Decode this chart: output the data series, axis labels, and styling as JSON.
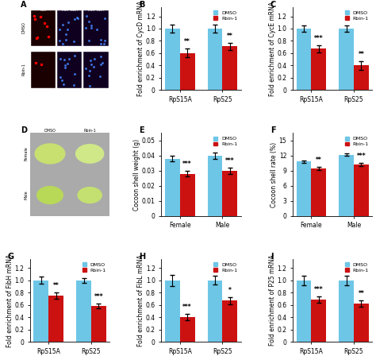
{
  "blue_color": "#6EC6E6",
  "red_color": "#CC1111",
  "panels": {
    "B": {
      "title": "B",
      "ylabel": "Fold enrichment of CycD mRNA",
      "xlabel_groups": [
        "RpS15A",
        "RpS25"
      ],
      "dmso_vals": [
        1.0,
        1.0
      ],
      "rbin_vals": [
        0.6,
        0.71
      ],
      "dmso_err": [
        0.07,
        0.06
      ],
      "rbin_err": [
        0.07,
        0.06
      ],
      "sig_labels": [
        "**",
        "**"
      ],
      "ylim": [
        0,
        1.35
      ],
      "yticks": [
        0,
        0.2,
        0.4,
        0.6,
        0.8,
        1.0,
        1.2
      ]
    },
    "C": {
      "title": "C",
      "ylabel": "Fold enrichment of CycE mRNA",
      "xlabel_groups": [
        "RpS15A",
        "RpS25"
      ],
      "dmso_vals": [
        1.0,
        1.0
      ],
      "rbin_vals": [
        0.67,
        0.4
      ],
      "dmso_err": [
        0.05,
        0.05
      ],
      "rbin_err": [
        0.06,
        0.07
      ],
      "sig_labels": [
        "***",
        "**"
      ],
      "ylim": [
        0,
        1.35
      ],
      "yticks": [
        0,
        0.2,
        0.4,
        0.6,
        0.8,
        1.0,
        1.2
      ]
    },
    "E": {
      "title": "E",
      "ylabel": "Cocoon shell weight (g)",
      "xlabel_groups": [
        "Female",
        "Male"
      ],
      "dmso_vals": [
        0.038,
        0.04
      ],
      "rbin_vals": [
        0.028,
        0.03
      ],
      "dmso_err": [
        0.002,
        0.002
      ],
      "rbin_err": [
        0.002,
        0.002
      ],
      "sig_labels": [
        "***",
        "***"
      ],
      "ylim": [
        0,
        0.055
      ],
      "yticks": [
        0,
        0.01,
        0.02,
        0.03,
        0.04,
        0.05
      ],
      "yticklabels": [
        "0",
        "0.01",
        "0.02",
        "0.03",
        "0.04",
        "0.05"
      ]
    },
    "F": {
      "title": "F",
      "ylabel": "Cocoon shell rate (%)",
      "xlabel_groups": [
        "Female",
        "Male"
      ],
      "dmso_vals": [
        10.8,
        12.2
      ],
      "rbin_vals": [
        9.5,
        10.2
      ],
      "dmso_err": [
        0.25,
        0.25
      ],
      "rbin_err": [
        0.3,
        0.3
      ],
      "sig_labels": [
        "**",
        "***"
      ],
      "ylim": [
        0,
        16.5
      ],
      "yticks": [
        0,
        3,
        6,
        9,
        12,
        15
      ],
      "yticklabels": [
        "0",
        "3",
        "6",
        "9",
        "12",
        "15"
      ]
    },
    "G": {
      "title": "G",
      "ylabel": "Fold enrichment of FibH mRNA",
      "xlabel_groups": [
        "RpS15A",
        "RpS25"
      ],
      "dmso_vals": [
        1.0,
        1.0
      ],
      "rbin_vals": [
        0.75,
        0.58
      ],
      "dmso_err": [
        0.06,
        0.04
      ],
      "rbin_err": [
        0.05,
        0.04
      ],
      "sig_labels": [
        "**",
        "***"
      ],
      "ylim": [
        0,
        1.35
      ],
      "yticks": [
        0,
        0.2,
        0.4,
        0.6,
        0.8,
        1.0,
        1.2
      ]
    },
    "H": {
      "title": "H",
      "ylabel": "Fold enrichment of FibL mRNA",
      "xlabel_groups": [
        "RpS15A",
        "RpS25"
      ],
      "dmso_vals": [
        1.0,
        1.0
      ],
      "rbin_vals": [
        0.4,
        0.67
      ],
      "dmso_err": [
        0.09,
        0.07
      ],
      "rbin_err": [
        0.05,
        0.06
      ],
      "sig_labels": [
        "***",
        "*"
      ],
      "ylim": [
        0,
        1.35
      ],
      "yticks": [
        0,
        0.2,
        0.4,
        0.6,
        0.8,
        1.0,
        1.2
      ]
    },
    "I": {
      "title": "I",
      "ylabel": "Fold enrichment of P25 mRNA",
      "xlabel_groups": [
        "RpS15A",
        "RpS25"
      ],
      "dmso_vals": [
        1.0,
        1.0
      ],
      "rbin_vals": [
        0.69,
        0.62
      ],
      "dmso_err": [
        0.08,
        0.08
      ],
      "rbin_err": [
        0.05,
        0.05
      ],
      "sig_labels": [
        "***",
        "**"
      ],
      "ylim": [
        0,
        1.35
      ],
      "yticks": [
        0,
        0.2,
        0.4,
        0.6,
        0.8,
        1.0,
        1.2
      ]
    }
  }
}
